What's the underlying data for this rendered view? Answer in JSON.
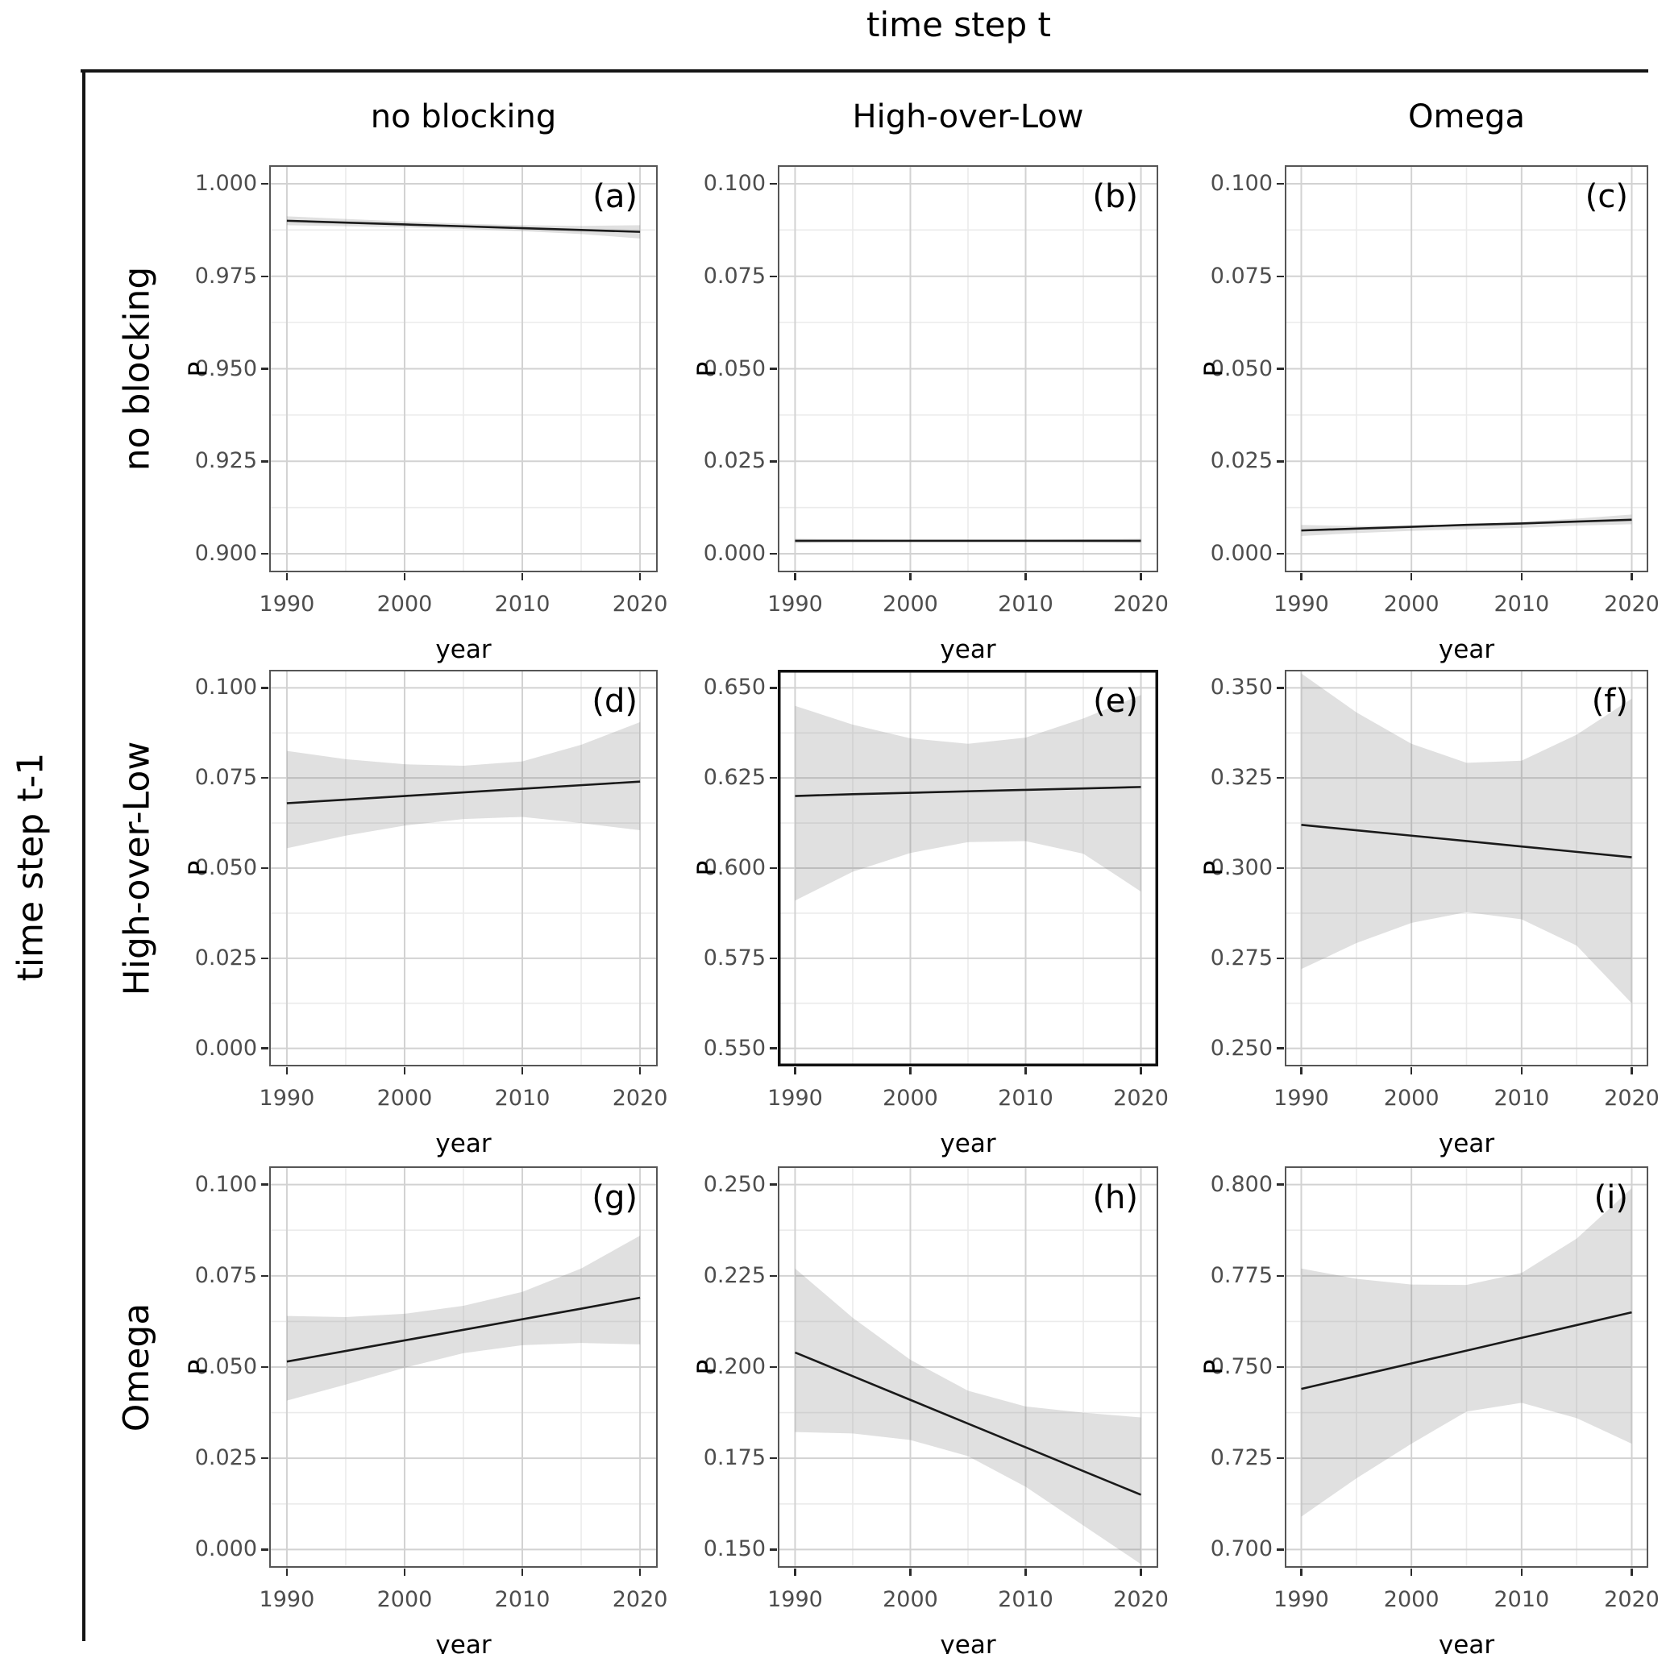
{
  "figure": {
    "title": "time step t",
    "left_axis_title": "time step t-1",
    "column_headers": [
      "no blocking",
      "High-over-Low",
      "Omega"
    ],
    "row_headers": [
      "no blocking",
      "High-over-Low",
      "Omega"
    ]
  },
  "colors": {
    "rule": "#141414",
    "trend_line": "#1a1a1a",
    "ribbon": "rgba(127,127,127,0.24)",
    "grid_major": "#d2d2d2",
    "grid_minor": "#ebebeb",
    "panel_border": "#565656",
    "panel_border_emphasized": "#111111",
    "tick_label": "#4d4d4d",
    "tick_mark": "#2b2b2b"
  },
  "chart_data": {
    "type": "line",
    "title": "time step t",
    "xlabel": "year",
    "ylabel": "P",
    "x": [
      1990,
      1995,
      2000,
      2005,
      2010,
      2015,
      2020
    ],
    "x_ticks": [
      1990,
      2000,
      2010,
      2020
    ],
    "x_minor_ticks": [
      1995,
      2005,
      2015
    ],
    "x_range": [
      1988.5,
      2021.5
    ],
    "grid": true,
    "legend": false,
    "panels": [
      {
        "tag": "(a)",
        "row_state": "no blocking",
        "col_state": "no blocking",
        "y_ticks": [
          0.9,
          0.925,
          0.95,
          0.975,
          1.0
        ],
        "y_range": [
          0.895,
          1.005
        ],
        "line": [
          0.99,
          0.9895,
          0.989,
          0.9885,
          0.988,
          0.9875,
          0.987
        ],
        "upper": [
          0.9912,
          0.9905,
          0.9898,
          0.9892,
          0.9888,
          0.9886,
          0.9888
        ],
        "lower": [
          0.9888,
          0.9885,
          0.9882,
          0.9878,
          0.9872,
          0.9864,
          0.9852
        ],
        "emphasized_border": false
      },
      {
        "tag": "(b)",
        "row_state": "no blocking",
        "col_state": "High-over-Low",
        "y_ticks": [
          0.0,
          0.025,
          0.05,
          0.075,
          0.1
        ],
        "y_range": [
          -0.005,
          0.105
        ],
        "line": [
          0.0035,
          0.0035,
          0.0035,
          0.0035,
          0.0035,
          0.0035,
          0.0035
        ],
        "upper": [
          0.0041,
          0.0039,
          0.0038,
          0.0038,
          0.0038,
          0.0039,
          0.0041
        ],
        "lower": [
          0.0029,
          0.0031,
          0.0032,
          0.0032,
          0.0032,
          0.0031,
          0.0029
        ],
        "emphasized_border": false
      },
      {
        "tag": "(c)",
        "row_state": "no blocking",
        "col_state": "Omega",
        "y_ticks": [
          0.0,
          0.025,
          0.05,
          0.075,
          0.1
        ],
        "y_range": [
          -0.005,
          0.105
        ],
        "line": [
          0.0063,
          0.0068,
          0.0073,
          0.0078,
          0.0082,
          0.0087,
          0.0092
        ],
        "upper": [
          0.0078,
          0.0075,
          0.0076,
          0.008,
          0.0086,
          0.0095,
          0.0106
        ],
        "lower": [
          0.0048,
          0.0056,
          0.0062,
          0.0066,
          0.007,
          0.0076,
          0.008
        ],
        "emphasized_border": false
      },
      {
        "tag": "(d)",
        "row_state": "High-over-Low",
        "col_state": "no blocking",
        "y_ticks": [
          0.0,
          0.025,
          0.05,
          0.075,
          0.1
        ],
        "y_range": [
          -0.005,
          0.105
        ],
        "line": [
          0.068,
          0.069,
          0.07,
          0.071,
          0.072,
          0.073,
          0.074
        ],
        "upper": [
          0.0825,
          0.0802,
          0.0788,
          0.0784,
          0.0796,
          0.0842,
          0.0905
        ],
        "lower": [
          0.0555,
          0.059,
          0.0618,
          0.0636,
          0.0642,
          0.0625,
          0.0605
        ],
        "emphasized_border": false
      },
      {
        "tag": "(e)",
        "row_state": "High-over-Low",
        "col_state": "High-over-Low",
        "y_ticks": [
          0.55,
          0.575,
          0.6,
          0.625,
          0.65
        ],
        "y_range": [
          0.545,
          0.655
        ],
        "line": [
          0.62,
          0.6205,
          0.6209,
          0.6213,
          0.6217,
          0.6221,
          0.6225
        ],
        "upper": [
          0.645,
          0.6398,
          0.636,
          0.6345,
          0.6362,
          0.6415,
          0.648
        ],
        "lower": [
          0.591,
          0.599,
          0.6042,
          0.6072,
          0.6075,
          0.604,
          0.5935
        ],
        "emphasized_border": true
      },
      {
        "tag": "(f)",
        "row_state": "High-over-Low",
        "col_state": "Omega",
        "y_ticks": [
          0.25,
          0.275,
          0.3,
          0.325,
          0.35
        ],
        "y_range": [
          0.245,
          0.355
        ],
        "line": [
          0.312,
          0.3105,
          0.309,
          0.3075,
          0.306,
          0.3045,
          0.303
        ],
        "upper": [
          0.354,
          0.3432,
          0.3345,
          0.3292,
          0.3298,
          0.337,
          0.347
        ],
        "lower": [
          0.272,
          0.2792,
          0.2848,
          0.2878,
          0.2858,
          0.2785,
          0.2625
        ],
        "emphasized_border": false
      },
      {
        "tag": "(g)",
        "row_state": "Omega",
        "col_state": "no blocking",
        "y_ticks": [
          0.0,
          0.025,
          0.05,
          0.075,
          0.1
        ],
        "y_range": [
          -0.005,
          0.105
        ],
        "line": [
          0.0515,
          0.0544,
          0.0573,
          0.0602,
          0.0631,
          0.066,
          0.069
        ],
        "upper": [
          0.064,
          0.0637,
          0.0646,
          0.0668,
          0.0706,
          0.077,
          0.086
        ],
        "lower": [
          0.0408,
          0.0452,
          0.0498,
          0.0538,
          0.056,
          0.0566,
          0.0562
        ],
        "emphasized_border": false
      },
      {
        "tag": "(h)",
        "row_state": "Omega",
        "col_state": "High-over-Low",
        "y_ticks": [
          0.15,
          0.175,
          0.2,
          0.225,
          0.25
        ],
        "y_range": [
          0.145,
          0.255
        ],
        "line": [
          0.204,
          0.1975,
          0.191,
          0.1845,
          0.178,
          0.1715,
          0.165
        ],
        "upper": [
          0.227,
          0.2135,
          0.202,
          0.1935,
          0.1892,
          0.1875,
          0.1862
        ],
        "lower": [
          0.1822,
          0.1818,
          0.18,
          0.1756,
          0.1672,
          0.1566,
          0.146
        ],
        "emphasized_border": false
      },
      {
        "tag": "(i)",
        "row_state": "Omega",
        "col_state": "Omega",
        "y_ticks": [
          0.7,
          0.725,
          0.75,
          0.775,
          0.8
        ],
        "y_range": [
          0.695,
          0.805
        ],
        "line": [
          0.744,
          0.7475,
          0.751,
          0.7545,
          0.758,
          0.7615,
          0.765
        ],
        "upper": [
          0.777,
          0.7742,
          0.7726,
          0.7725,
          0.7758,
          0.7852,
          0.799
        ],
        "lower": [
          0.709,
          0.7195,
          0.729,
          0.7378,
          0.7402,
          0.736,
          0.729
        ],
        "emphasized_border": false
      }
    ]
  }
}
